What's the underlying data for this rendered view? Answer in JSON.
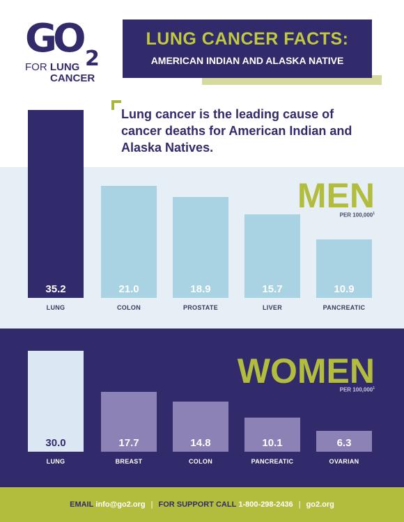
{
  "logo": {
    "go": "GO",
    "two": "2",
    "for": "FOR",
    "lung": "LUNG",
    "cancer": "CANCER"
  },
  "header": {
    "title": "LUNG CANCER FACTS:",
    "subtitle": "AMERICAN INDIAN AND ALASKA NATIVE"
  },
  "quote": "Lung cancer is the leading cause of cancer deaths for American Indian and Alaska Natives.",
  "men": {
    "heading": "MEN",
    "per": "PER 100,000",
    "per_sup": "1"
  },
  "women": {
    "heading": "WOMEN",
    "per": "PER 100,000",
    "per_sup": "1"
  },
  "footer": {
    "email_label": "EMAIL",
    "email": "info@go2.org",
    "support_label": "FOR SUPPORT CALL",
    "phone": "1-800-298-2436",
    "site": "go2.org"
  },
  "colors": {
    "navy": "#322b6b",
    "olive": "#b3bd3d",
    "light_blue": "#a9d3e3",
    "lavender": "#8c82b6",
    "pale": "#dbe8f3"
  },
  "chart_data": [
    {
      "type": "bar",
      "name": "Men",
      "categories": [
        "LUNG",
        "COLON",
        "PROSTATE",
        "LIVER",
        "PANCREATIC"
      ],
      "values": [
        35.2,
        21.0,
        18.9,
        15.7,
        10.9
      ],
      "labels": [
        "35.2",
        "21.0",
        "18.9",
        "15.7",
        "10.9"
      ],
      "unit": "PER 100,000"
    },
    {
      "type": "bar",
      "name": "Women",
      "categories": [
        "LUNG",
        "BREAST",
        "COLON",
        "PANCREATIC",
        "OVARIAN"
      ],
      "values": [
        30.0,
        17.7,
        14.8,
        10.1,
        6.3
      ],
      "labels": [
        "30.0",
        "17.7",
        "14.8",
        "10.1",
        "6.3"
      ],
      "unit": "PER 100,000"
    }
  ]
}
